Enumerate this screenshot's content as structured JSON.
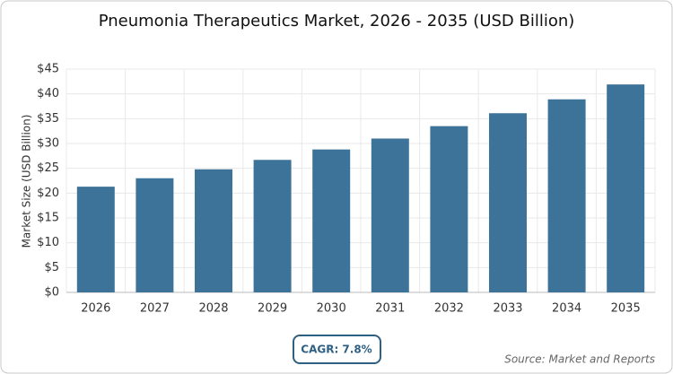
{
  "chart_data": {
    "type": "bar",
    "title": "Pneumonia Therapeutics Market, 2026 - 2035 (USD Billion)",
    "y_label": "Market Size (USD Billion)",
    "categories": [
      "2026",
      "2027",
      "2028",
      "2029",
      "2030",
      "2031",
      "2032",
      "2033",
      "2034",
      "2035"
    ],
    "values": [
      21.3,
      23.0,
      24.8,
      26.7,
      28.8,
      31.0,
      33.5,
      36.1,
      38.9,
      41.9
    ],
    "color": "#3d7399",
    "ylim": [
      0,
      45
    ],
    "yticks": [
      {
        "value": 0,
        "label": "$0"
      },
      {
        "value": 5,
        "label": "$5"
      },
      {
        "value": 10,
        "label": "$10"
      },
      {
        "value": 15,
        "label": "$15"
      },
      {
        "value": 20,
        "label": "$20"
      },
      {
        "value": 25,
        "label": "$25"
      },
      {
        "value": 30,
        "label": "$30"
      },
      {
        "value": 35,
        "label": "$35"
      },
      {
        "value": 40,
        "label": "$40"
      },
      {
        "value": 45,
        "label": "$45"
      }
    ],
    "grid": true,
    "annotation": "CAGR: 7.8%",
    "source": "Source: Market and Reports"
  }
}
